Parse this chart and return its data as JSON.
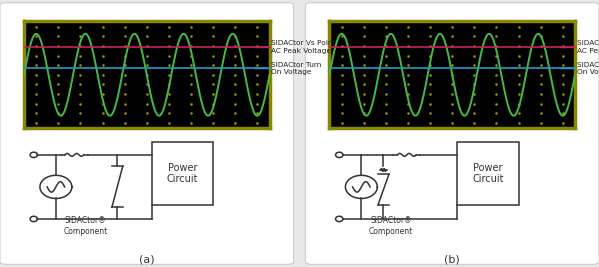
{
  "title_a": "(a)",
  "title_b": "(b)",
  "label_vs": "SIDACtor Vs Point\nAC Peak Voltage",
  "label_turn": "SIDACtor Turn\nOn Voltage",
  "label_sidactor": "SIDACtor®\nComponent",
  "label_power": "Power\nCircuit",
  "osc_bg": "#000000",
  "osc_border_color": "#888800",
  "sine_color": "#44bb44",
  "vs_line_color": "#cc2255",
  "turn_line_color": "#2299cc",
  "fig_bg": "#e8e8e8",
  "panel_bg": "#ffffff",
  "annotation_text_color": "#222222",
  "grid_dot_color": "#666600",
  "osc_outer_border": "#666600"
}
